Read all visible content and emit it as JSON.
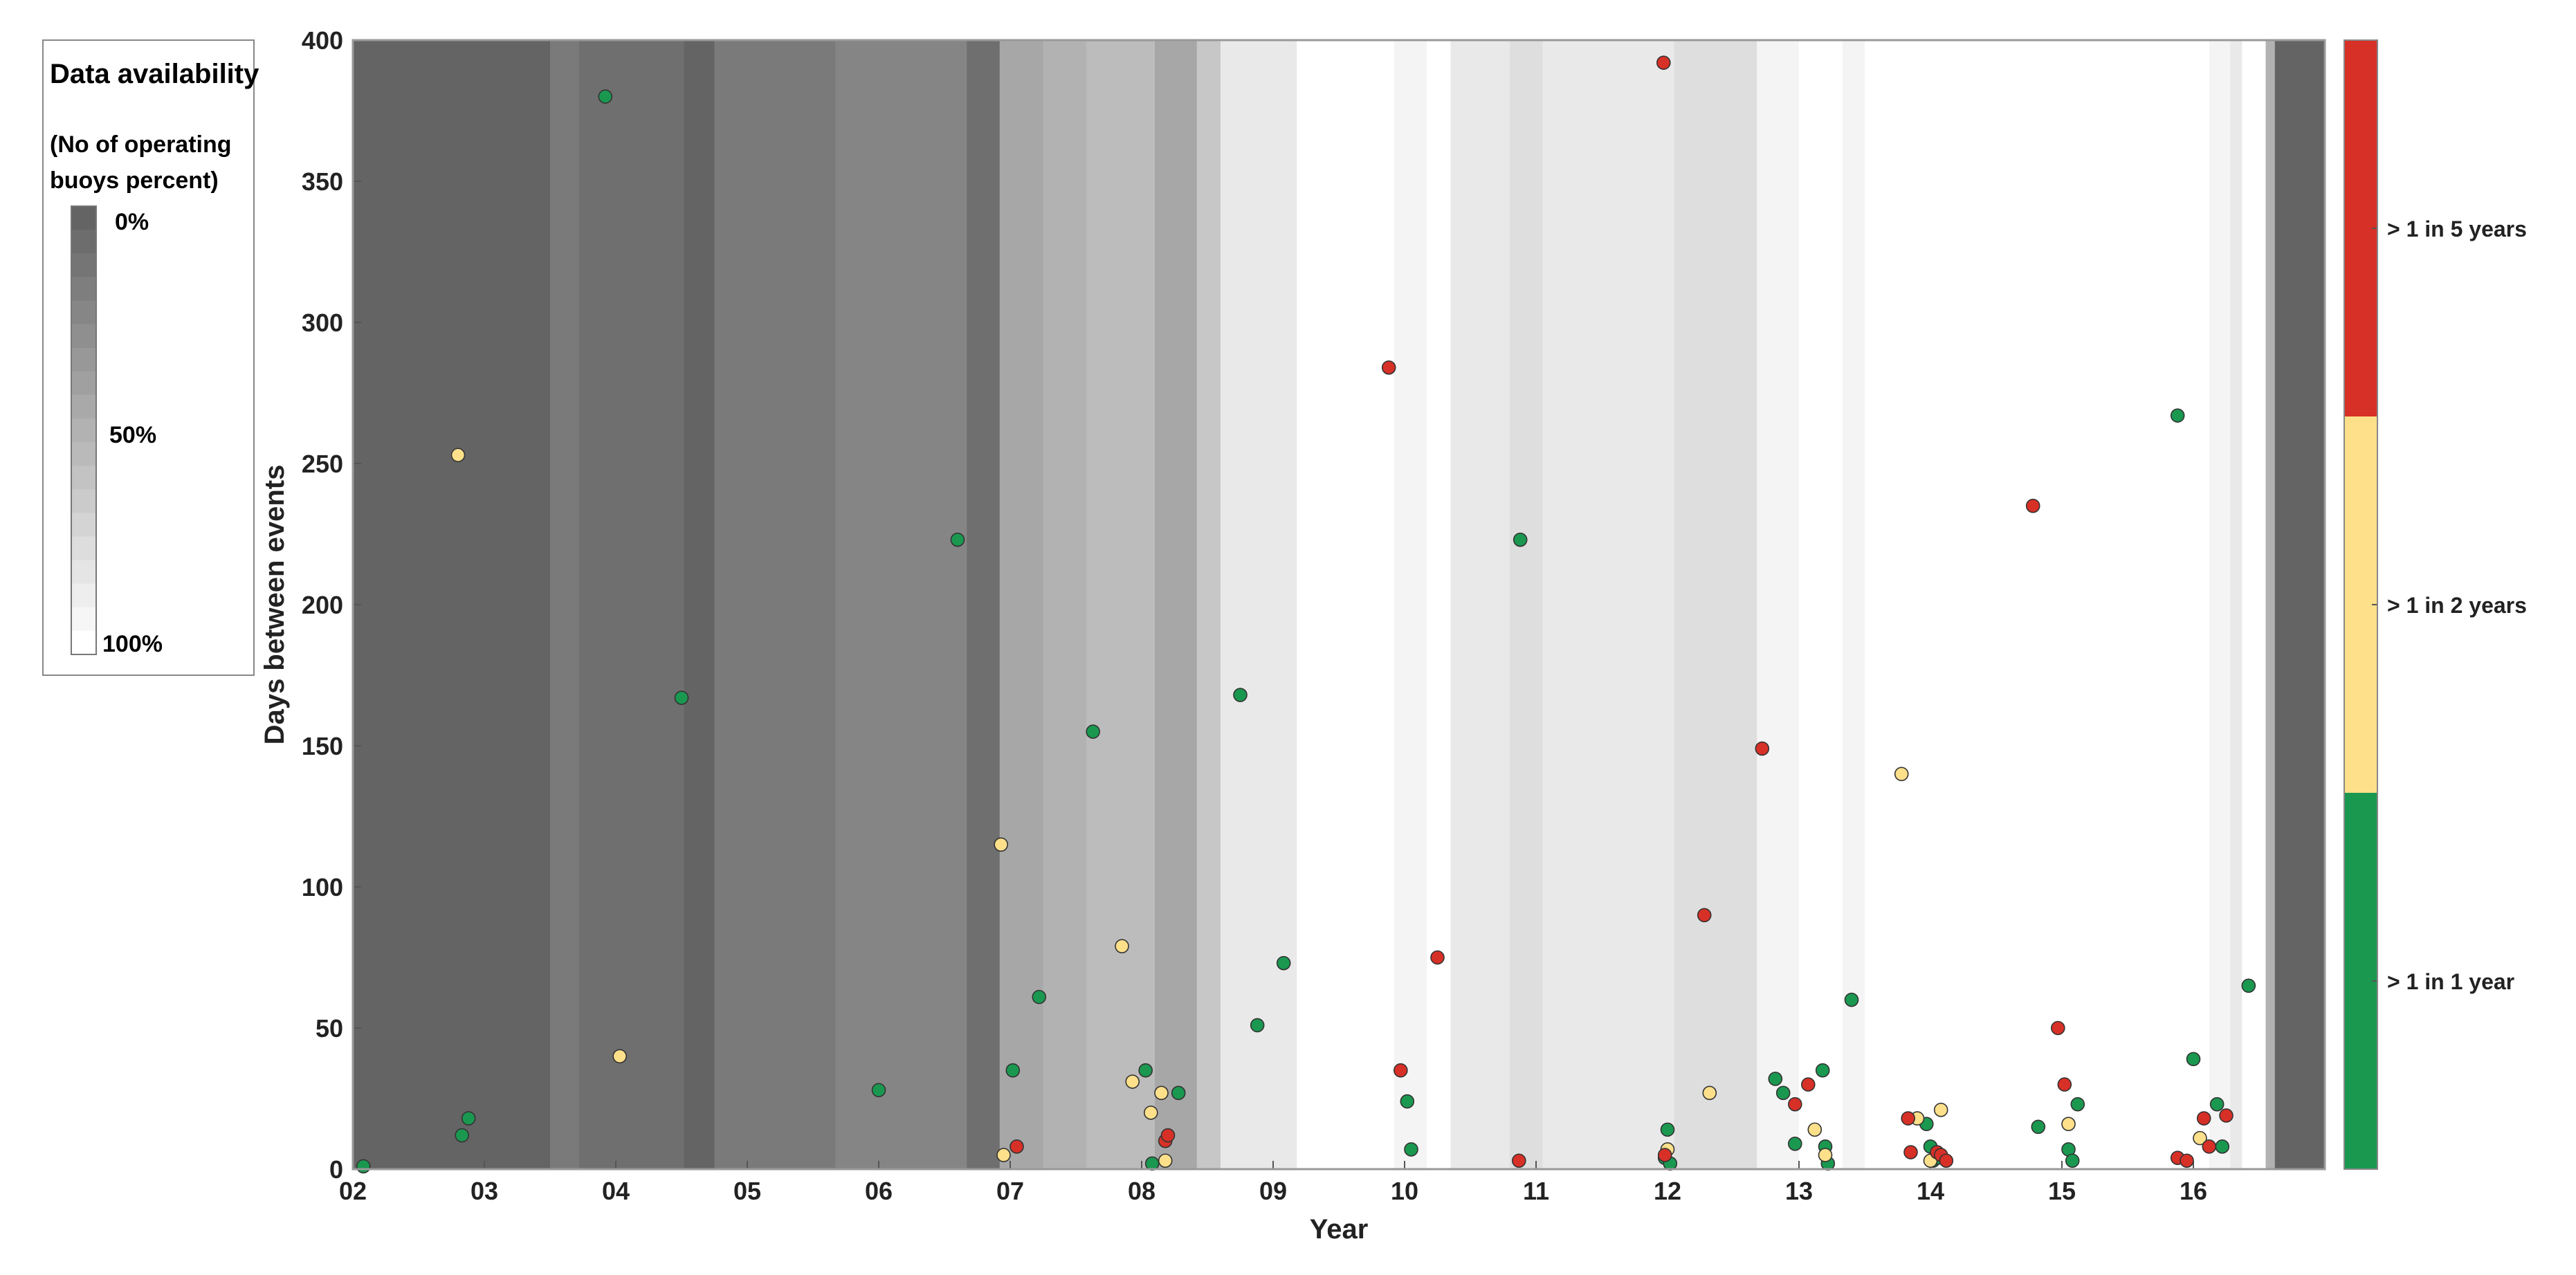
{
  "chart_data": {
    "type": "scatter",
    "title": "",
    "xlabel": "Year",
    "ylabel": "Days between events",
    "xlim": [
      2002,
      2017.0
    ],
    "ylim": [
      0,
      400
    ],
    "xtick_values": [
      2002,
      2003,
      2004,
      2005,
      2006,
      2007,
      2008,
      2009,
      2010,
      2011,
      2012,
      2013,
      2014,
      2015,
      2016
    ],
    "xtick_labels": [
      "02",
      "03",
      "04",
      "05",
      "06",
      "07",
      "08",
      "09",
      "10",
      "11",
      "12",
      "13",
      "14",
      "15",
      "16"
    ],
    "ytick_values": [
      0,
      50,
      100,
      150,
      200,
      250,
      300,
      350,
      400
    ],
    "ytick_labels": [
      "0",
      "50",
      "100",
      "150",
      "200",
      "250",
      "300",
      "350",
      "400"
    ],
    "grid": false,
    "background_availability": {
      "description_source": "Data availability (No of operating buoys percent)",
      "bands": [
        {
          "x0": 2002.0,
          "x1": 2003.5,
          "pct": 0
        },
        {
          "x0": 2003.5,
          "x1": 2003.72,
          "pct": 14
        },
        {
          "x0": 2003.72,
          "x1": 2004.52,
          "pct": 7
        },
        {
          "x0": 2004.52,
          "x1": 2004.75,
          "pct": 0
        },
        {
          "x0": 2004.75,
          "x1": 2005.67,
          "pct": 14
        },
        {
          "x0": 2005.67,
          "x1": 2006.67,
          "pct": 21
        },
        {
          "x0": 2006.67,
          "x1": 2006.92,
          "pct": 7
        },
        {
          "x0": 2006.92,
          "x1": 2007.25,
          "pct": 43
        },
        {
          "x0": 2007.25,
          "x1": 2007.58,
          "pct": 50
        },
        {
          "x0": 2007.58,
          "x1": 2008.1,
          "pct": 57
        },
        {
          "x0": 2008.1,
          "x1": 2008.42,
          "pct": 43
        },
        {
          "x0": 2008.42,
          "x1": 2008.6,
          "pct": 64
        },
        {
          "x0": 2008.6,
          "x1": 2009.18,
          "pct": 86
        },
        {
          "x0": 2009.18,
          "x1": 2009.92,
          "pct": 100
        },
        {
          "x0": 2009.92,
          "x1": 2010.17,
          "pct": 93
        },
        {
          "x0": 2010.17,
          "x1": 2010.35,
          "pct": 100
        },
        {
          "x0": 2010.35,
          "x1": 2010.8,
          "pct": 86
        },
        {
          "x0": 2010.8,
          "x1": 2011.05,
          "pct": 79
        },
        {
          "x0": 2011.05,
          "x1": 2012.05,
          "pct": 86
        },
        {
          "x0": 2012.05,
          "x1": 2012.68,
          "pct": 79
        },
        {
          "x0": 2012.68,
          "x1": 2013.0,
          "pct": 93
        },
        {
          "x0": 2013.0,
          "x1": 2013.33,
          "pct": 100
        },
        {
          "x0": 2013.33,
          "x1": 2013.5,
          "pct": 93
        },
        {
          "x0": 2013.5,
          "x1": 2016.12,
          "pct": 100
        },
        {
          "x0": 2016.12,
          "x1": 2016.28,
          "pct": 93
        },
        {
          "x0": 2016.28,
          "x1": 2016.37,
          "pct": 86
        },
        {
          "x0": 2016.37,
          "x1": 2016.55,
          "pct": 100
        },
        {
          "x0": 2016.55,
          "x1": 2016.62,
          "pct": 50
        },
        {
          "x0": 2016.62,
          "x1": 2017.0,
          "pct": 0
        }
      ]
    },
    "series": [
      {
        "name": "> 1 in 1 year",
        "color": "#1a9850",
        "points": [
          [
            2002.08,
            1
          ],
          [
            2002.83,
            12
          ],
          [
            2002.88,
            18
          ],
          [
            2003.92,
            380
          ],
          [
            2004.5,
            167
          ],
          [
            2006.0,
            28
          ],
          [
            2006.6,
            223
          ],
          [
            2007.02,
            35
          ],
          [
            2007.22,
            61
          ],
          [
            2007.63,
            155
          ],
          [
            2008.03,
            35
          ],
          [
            2008.08,
            2
          ],
          [
            2008.28,
            27
          ],
          [
            2008.75,
            168
          ],
          [
            2008.88,
            51
          ],
          [
            2009.08,
            73
          ],
          [
            2010.02,
            24
          ],
          [
            2010.05,
            7
          ],
          [
            2010.88,
            223
          ],
          [
            2011.98,
            4
          ],
          [
            2012.0,
            14
          ],
          [
            2012.02,
            2
          ],
          [
            2012.82,
            32
          ],
          [
            2012.88,
            27
          ],
          [
            2012.97,
            9
          ],
          [
            2013.18,
            35
          ],
          [
            2013.2,
            8
          ],
          [
            2013.22,
            2
          ],
          [
            2013.4,
            60
          ],
          [
            2013.97,
            16
          ],
          [
            2014.02,
            3
          ],
          [
            2014.0,
            8
          ],
          [
            2014.05,
            4
          ],
          [
            2014.82,
            15
          ],
          [
            2015.05,
            7
          ],
          [
            2015.08,
            3
          ],
          [
            2015.12,
            23
          ],
          [
            2015.88,
            267
          ],
          [
            2016.0,
            39
          ],
          [
            2016.18,
            23
          ],
          [
            2016.22,
            8
          ],
          [
            2016.42,
            65
          ]
        ]
      },
      {
        "name": "> 1 in 2 years",
        "color": "#fee08b",
        "points": [
          [
            2002.8,
            253
          ],
          [
            2004.03,
            40
          ],
          [
            2006.93,
            115
          ],
          [
            2006.95,
            5
          ],
          [
            2007.85,
            79
          ],
          [
            2007.93,
            31
          ],
          [
            2008.07,
            20
          ],
          [
            2008.15,
            27
          ],
          [
            2008.18,
            3
          ],
          [
            2012.0,
            7
          ],
          [
            2012.32,
            27
          ],
          [
            2013.12,
            14
          ],
          [
            2013.2,
            5
          ],
          [
            2013.78,
            140
          ],
          [
            2013.9,
            18
          ],
          [
            2014.0,
            3
          ],
          [
            2014.08,
            21
          ],
          [
            2015.05,
            16
          ],
          [
            2016.05,
            11
          ]
        ]
      },
      {
        "name": "> 1 in 5 years",
        "color": "#d73027",
        "points": [
          [
            2007.05,
            8
          ],
          [
            2008.18,
            10
          ],
          [
            2008.2,
            12
          ],
          [
            2009.88,
            284
          ],
          [
            2009.97,
            35
          ],
          [
            2010.25,
            75
          ],
          [
            2010.87,
            3
          ],
          [
            2011.97,
            392
          ],
          [
            2011.98,
            5
          ],
          [
            2012.28,
            90
          ],
          [
            2012.72,
            149
          ],
          [
            2012.97,
            23
          ],
          [
            2013.07,
            30
          ],
          [
            2013.83,
            18
          ],
          [
            2013.85,
            6
          ],
          [
            2014.05,
            6
          ],
          [
            2014.08,
            5
          ],
          [
            2014.12,
            3
          ],
          [
            2014.78,
            235
          ],
          [
            2014.97,
            50
          ],
          [
            2015.02,
            30
          ],
          [
            2015.88,
            4
          ],
          [
            2015.95,
            3
          ],
          [
            2016.08,
            18
          ],
          [
            2016.12,
            8
          ],
          [
            2016.25,
            19
          ]
        ]
      }
    ],
    "colorbar": {
      "labels": [
        "> 1 in 5 years",
        "> 1 in 2 years",
        "> 1 in 1 year"
      ],
      "colors": [
        "#d73027",
        "#fee08b",
        "#1a9850"
      ]
    },
    "legend": {
      "title": "Data availability",
      "subtitle_line1": "(No of operating",
      "subtitle_line2": "buoys percent)",
      "label_top": "0%",
      "label_mid": "50%",
      "label_bottom": "100%",
      "placement": "left"
    }
  }
}
